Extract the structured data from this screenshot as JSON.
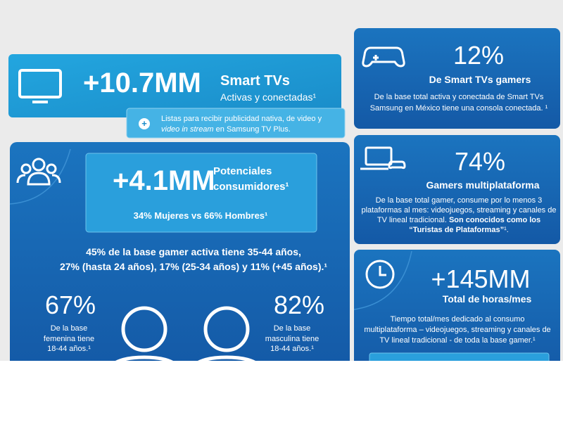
{
  "smart_tvs": {
    "value": "+10.7MM",
    "title": "Smart TVs",
    "subtitle": "Activas y conectadas¹",
    "note": {
      "line1": "Listas para recibir publicidad nativa, de video y",
      "line2_italic": "video in stream",
      "line2_rest": " en Samsung TV Plus."
    }
  },
  "consumers": {
    "value": "+4.1MM",
    "label_line1": "Potenciales",
    "label_line2": "consumidores¹",
    "split": "34% Mujeres vs 66% Hombres¹",
    "age_line1": "45% de la base gamer activa tiene 35-44 años,",
    "age_line2": "27% (hasta 24 años), 17% (25-34 años) y 11% (+45 años).¹",
    "female": {
      "value": "67%",
      "lines": [
        "De la base",
        "femenina tiene",
        "18-44 años.¹"
      ]
    },
    "male": {
      "value": "82%",
      "lines": [
        "De la base",
        "masculina tiene",
        "18-44 años.¹"
      ]
    }
  },
  "gamer_tvs": {
    "value": "12%",
    "title": "De Smart TVs gamers",
    "lines": [
      "De la base total activa y conectada de Smart TVs",
      "Samsung en México tiene una consola conectada. ¹"
    ]
  },
  "multiplatform": {
    "value": "74%",
    "title": "Gamers multiplataforma",
    "lines": [
      "De la base total gamer, consume por lo menos 3",
      "plataformas al mes: videojuegos, streaming y canales de"
    ],
    "line3_plain": "TV lineal tradicional. ",
    "line3_bold": "Son conocidos como los",
    "line4_bold": "“Turistas de Plataformas”",
    "line4_rest": "¹."
  },
  "hours": {
    "value": "+145MM",
    "title": "Total de horas/mes",
    "lines": [
      "Tiempo total/mes dedicado al consumo",
      "multiplataforma – videojuegos, streaming y canales de",
      "TV lineal tradicional - de toda la base gamer.¹"
    ]
  }
}
